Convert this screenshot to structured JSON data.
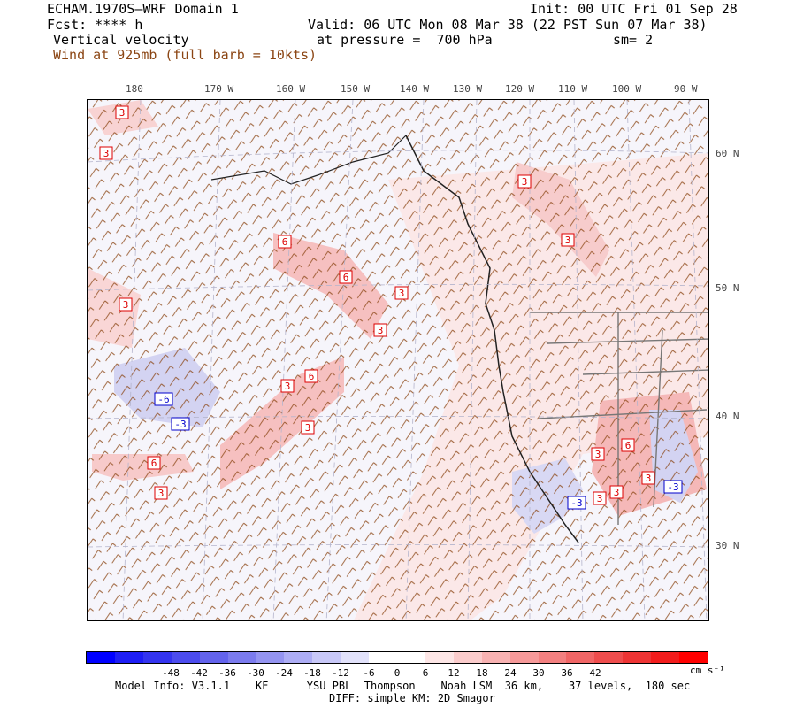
{
  "header": {
    "title": "ECHAM.1970S—WRF Domain 1",
    "init": "Init: 00 UTC Fri 01 Sep 28",
    "fcst": "Fcst: **** h",
    "valid": "Valid: 06 UTC Mon 08 Mar 38 (22 PST Sun 07 Mar 38)",
    "field": "Vertical velocity",
    "pressure": "at pressure =  700 hPa",
    "smooth": "sm= 2",
    "wind": "Wind at 925mb (full barb = 10kts)"
  },
  "lon_labels": [
    "180",
    "170 W",
    "160 W",
    "150 W",
    "140 W",
    "130 W",
    "120 W",
    "110 W",
    "100 W",
    "90 W"
  ],
  "lat_labels": [
    "60 N",
    "50 N",
    "40 N",
    "30 N"
  ],
  "contour_labels": [
    "3",
    "3",
    "6",
    "3",
    "6",
    "3",
    "3",
    "3",
    "6",
    "3",
    "3",
    "-6",
    "-3",
    "6",
    "3",
    "3",
    "-3",
    "3",
    "3",
    "3",
    "-3",
    "3",
    "6"
  ],
  "colorbar": {
    "labels": [
      "-48",
      "-42",
      "-36",
      "-30",
      "-24",
      "-18",
      "-12",
      "-6",
      "0",
      "6",
      "12",
      "18",
      "24",
      "30",
      "36",
      "42"
    ],
    "units": "cm s⁻¹",
    "colors": [
      "#0000ff",
      "#1e1ef5",
      "#3434f0",
      "#4c4cee",
      "#6363ec",
      "#7b7bee",
      "#9494f1",
      "#adadf5",
      "#c8c8f8",
      "#e2e2fb",
      "#ffffff",
      "#ffffff",
      "#fde6e6",
      "#fbcccc",
      "#f8b2b2",
      "#f69999",
      "#f38080",
      "#f16666",
      "#ef4d4d",
      "#ee3434",
      "#f21c1c",
      "#ff0000"
    ]
  },
  "footer": {
    "model": "Model Info: V3.1.1    KF      YSU PBL  Thompson    Noah LSM  36 km,    37 levels,  180 sec",
    "diff": "DIFF: simple KM: 2D Smagor"
  }
}
